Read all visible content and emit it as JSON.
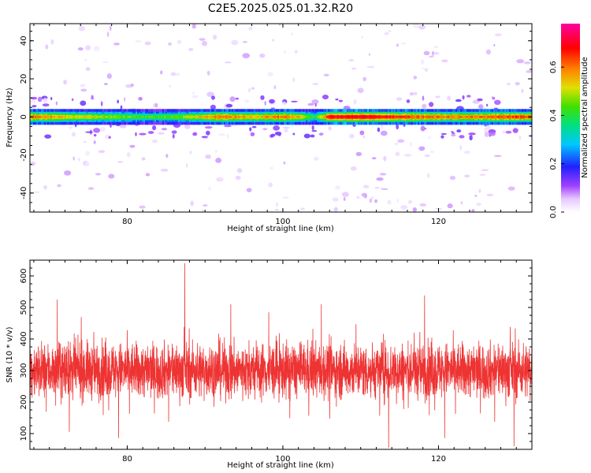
{
  "figure": {
    "title": "C2E5.2025.025.01.32.R20"
  },
  "chart_data": [
    {
      "type": "heatmap",
      "title": "",
      "xlabel": "Height of straight line (km)",
      "ylabel": "Frequency (Hz)",
      "xlim": [
        67.5,
        132
      ],
      "ylim": [
        -50,
        49
      ],
      "xticks": [
        80,
        100,
        120
      ],
      "xtick_labels": [
        "80",
        "100",
        "120"
      ],
      "yticks": [
        -40,
        -20,
        0,
        20,
        40
      ],
      "ytick_labels": [
        "-40",
        "-20",
        "0",
        "20",
        "40"
      ],
      "band_center_hz": 0,
      "band": [
        {
          "x": 68,
          "amp": 0.6
        },
        {
          "x": 72,
          "amp": 0.55
        },
        {
          "x": 76,
          "amp": 0.5
        },
        {
          "x": 80,
          "amp": 0.45
        },
        {
          "x": 84,
          "amp": 0.42
        },
        {
          "x": 88,
          "amp": 0.5
        },
        {
          "x": 92,
          "amp": 0.62
        },
        {
          "x": 96,
          "amp": 0.55
        },
        {
          "x": 100,
          "amp": 0.62
        },
        {
          "x": 102,
          "amp": 0.55
        },
        {
          "x": 104,
          "amp": 0.4
        },
        {
          "x": 106,
          "amp": 0.7
        },
        {
          "x": 110,
          "amp": 0.72
        },
        {
          "x": 114,
          "amp": 0.68
        },
        {
          "x": 118,
          "amp": 0.62
        },
        {
          "x": 122,
          "amp": 0.6
        },
        {
          "x": 126,
          "amp": 0.62
        },
        {
          "x": 130,
          "amp": 0.65
        },
        {
          "x": 132,
          "amp": 0.62
        }
      ],
      "colorbar": {
        "label": "Normalized spectral amplitude",
        "ticks": [
          0.0,
          0.2,
          0.4,
          0.6
        ],
        "tick_labels": [
          "0.0",
          "0.2",
          "0.4",
          "0.6"
        ],
        "range": [
          0,
          0.78
        ]
      }
    },
    {
      "type": "line",
      "title": "",
      "xlabel": "Height of straight line (km)",
      "ylabel": "SNR (10 * v/v)",
      "xlim": [
        67.5,
        132
      ],
      "ylim": [
        50,
        650
      ],
      "xticks": [
        80,
        100,
        120
      ],
      "xtick_labels": [
        "80",
        "100",
        "120"
      ],
      "yticks": [
        100,
        200,
        300,
        400,
        500,
        600
      ],
      "ytick_labels": [
        "100",
        "200",
        "300",
        "400",
        "500",
        "600"
      ],
      "series": [
        {
          "color": "#ee3333",
          "mean": 300,
          "spread": 55,
          "spikes": [
            {
              "x": 87.4,
              "y": 640
            },
            {
              "x": 71.0,
              "y": 525
            },
            {
              "x": 118.2,
              "y": 538
            },
            {
              "x": 113.6,
              "y": 55
            },
            {
              "x": 129.7,
              "y": 60
            },
            {
              "x": 93.3,
              "y": 510
            }
          ]
        }
      ]
    }
  ]
}
